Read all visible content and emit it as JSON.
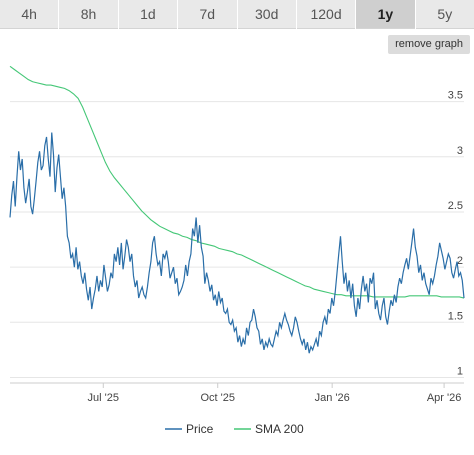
{
  "tabs": [
    {
      "label": "4h",
      "active": false
    },
    {
      "label": "8h",
      "active": false
    },
    {
      "label": "1d",
      "active": false
    },
    {
      "label": "7d",
      "active": false
    },
    {
      "label": "30d",
      "active": false
    },
    {
      "label": "120d",
      "active": false
    },
    {
      "label": "1y",
      "active": true
    },
    {
      "label": "5y",
      "active": false
    }
  ],
  "remove_graph_label": "remove graph",
  "colors": {
    "price": "#2a6ea8",
    "sma": "#45c777",
    "grid": "#e6e6e6"
  },
  "chart_data": {
    "type": "line",
    "x_ticks": [
      "Jul '25",
      "Oct '25",
      "Jan '26",
      "Apr '26"
    ],
    "y_ticks": [
      "1",
      "1.5",
      "2",
      "2.5",
      "3",
      "3.5"
    ],
    "ylim": [
      0.95,
      3.85
    ],
    "x_range": [
      "2025-04-17",
      "2026-04-17"
    ],
    "grid": "horizontal",
    "legend": "bottom",
    "series": [
      {
        "name": "Price",
        "values": [
          2.45,
          2.65,
          2.78,
          2.55,
          2.82,
          3.05,
          2.88,
          2.98,
          2.72,
          2.58,
          2.68,
          2.8,
          2.55,
          2.48,
          2.62,
          2.78,
          2.95,
          3.05,
          2.88,
          2.92,
          3.1,
          3.18,
          2.98,
          2.82,
          3.22,
          3.02,
          2.68,
          2.9,
          3.02,
          2.82,
          2.62,
          2.72,
          2.55,
          2.28,
          2.22,
          2.08,
          2.12,
          2.0,
          2.18,
          1.98,
          2.05,
          1.92,
          1.85,
          1.95,
          1.8,
          1.7,
          1.82,
          1.62,
          1.72,
          1.8,
          1.92,
          1.78,
          1.88,
          1.82,
          2.02,
          1.9,
          1.78,
          1.84,
          1.95,
          1.9,
          2.12,
          2.05,
          2.18,
          2.02,
          2.22,
          1.98,
          2.1,
          2.25,
          2.18,
          2.05,
          2.12,
          1.92,
          1.82,
          1.88,
          1.72,
          1.78,
          1.82,
          1.75,
          1.72,
          1.82,
          1.95,
          2.05,
          2.22,
          2.28,
          2.12,
          2.02,
          2.05,
          1.92,
          2.12,
          2.08,
          2.15,
          2.05,
          1.9,
          1.95,
          2.0,
          1.85,
          1.9,
          1.75,
          1.78,
          1.82,
          1.88,
          2.02,
          1.92,
          2.05,
          2.12,
          2.35,
          2.28,
          2.45,
          2.22,
          2.38,
          2.18,
          2.1,
          1.85,
          1.95,
          1.88,
          1.78,
          1.84,
          1.7,
          1.75,
          1.65,
          1.78,
          1.68,
          1.72,
          1.6,
          1.58,
          1.62,
          1.5,
          1.48,
          1.52,
          1.42,
          1.45,
          1.32,
          1.38,
          1.28,
          1.35,
          1.3,
          1.45,
          1.38,
          1.5,
          1.52,
          1.62,
          1.55,
          1.45,
          1.42,
          1.3,
          1.35,
          1.25,
          1.32,
          1.28,
          1.35,
          1.3,
          1.28,
          1.35,
          1.42,
          1.38,
          1.5,
          1.45,
          1.52,
          1.58,
          1.52,
          1.48,
          1.42,
          1.38,
          1.45,
          1.55,
          1.5,
          1.42,
          1.35,
          1.3,
          1.35,
          1.25,
          1.32,
          1.22,
          1.28,
          1.25,
          1.3,
          1.35,
          1.28,
          1.42,
          1.38,
          1.5,
          1.55,
          1.48,
          1.62,
          1.58,
          1.72,
          1.65,
          1.78,
          1.95,
          2.12,
          2.28,
          2.05,
          1.85,
          1.95,
          1.78,
          1.88,
          1.72,
          1.85,
          1.65,
          1.55,
          1.72,
          1.62,
          1.8,
          1.92,
          1.78,
          1.85,
          1.68,
          1.9,
          1.85,
          1.95,
          1.62,
          1.7,
          1.58,
          1.52,
          1.65,
          1.72,
          1.55,
          1.48,
          1.6,
          1.7,
          1.65,
          1.75,
          1.68,
          1.82,
          1.9,
          1.85,
          1.95,
          2.02,
          2.08,
          1.98,
          2.1,
          2.22,
          2.35,
          2.18,
          2.1,
          1.95,
          2.02,
          1.88,
          1.95,
          1.85,
          1.8,
          1.75,
          1.9,
          1.85,
          1.92,
          2.02,
          2.1,
          2.22,
          2.15,
          2.08,
          1.98,
          2.05,
          2.12,
          2.08,
          1.95,
          1.9,
          1.98,
          2.05,
          1.92,
          1.95,
          1.88,
          1.72
        ]
      },
      {
        "name": "SMA 200",
        "values": [
          3.82,
          3.79,
          3.76,
          3.73,
          3.7,
          3.68,
          3.67,
          3.66,
          3.65,
          3.65,
          3.64,
          3.63,
          3.62,
          3.6,
          3.57,
          3.53,
          3.45,
          3.35,
          3.25,
          3.15,
          3.05,
          2.95,
          2.87,
          2.81,
          2.76,
          2.71,
          2.66,
          2.61,
          2.56,
          2.51,
          2.47,
          2.43,
          2.4,
          2.37,
          2.35,
          2.33,
          2.31,
          2.3,
          2.28,
          2.27,
          2.25,
          2.24,
          2.22,
          2.21,
          2.2,
          2.19,
          2.17,
          2.16,
          2.15,
          2.14,
          2.12,
          2.11,
          2.09,
          2.07,
          2.05,
          2.03,
          2.01,
          1.99,
          1.97,
          1.95,
          1.93,
          1.91,
          1.89,
          1.87,
          1.85,
          1.83,
          1.82,
          1.8,
          1.79,
          1.78,
          1.77,
          1.76,
          1.75,
          1.75,
          1.74,
          1.74,
          1.74,
          1.74,
          1.74,
          1.74,
          1.73,
          1.73,
          1.73,
          1.73,
          1.73,
          1.73,
          1.73,
          1.73,
          1.74,
          1.74,
          1.74,
          1.74,
          1.74,
          1.74,
          1.74,
          1.73,
          1.73,
          1.73,
          1.73,
          1.73,
          1.72
        ]
      }
    ]
  }
}
